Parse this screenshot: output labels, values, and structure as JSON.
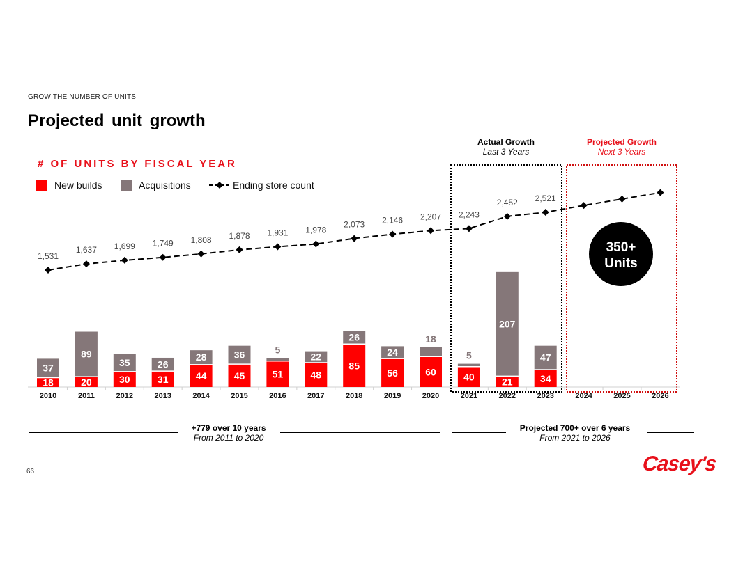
{
  "header": {
    "eyebrow": "GROW THE NUMBER OF UNITS",
    "title": "Projected unit growth",
    "subtitle": "# OF UNITS BY FISCAL YEAR"
  },
  "legend": {
    "new_builds": "New builds",
    "acquisitions": "Acquisitions",
    "ending_store_count": "Ending store count"
  },
  "bands": {
    "actual": {
      "title": "Actual Growth",
      "sub": "Last 3 Years"
    },
    "projected": {
      "title": "Projected Growth",
      "sub": "Next 3 Years"
    },
    "callout_line1": "350+",
    "callout_line2": "Units"
  },
  "footer": {
    "left_title": "+779 over 10 years",
    "left_sub": "From 2011 to 2020",
    "right_title": "Projected 700+ over 6 years",
    "right_sub": "From 2021 to 2026"
  },
  "page_number": "66",
  "logo_text": "Casey's",
  "colors": {
    "new_builds": "#ff0000",
    "acquisitions": "#857779",
    "line": "#000000",
    "accent": "#e8101a"
  },
  "chart_data": {
    "type": "bar",
    "stacked": true,
    "title": "# OF UNITS BY FISCAL YEAR",
    "categories": [
      "2010",
      "2011",
      "2012",
      "2013",
      "2014",
      "2015",
      "2016",
      "2017",
      "2018",
      "2019",
      "2020",
      "2021",
      "2022",
      "2023",
      "2024",
      "2025",
      "2026"
    ],
    "series": [
      {
        "name": "New builds",
        "values": [
          18,
          20,
          30,
          31,
          44,
          45,
          51,
          48,
          85,
          56,
          60,
          40,
          21,
          34,
          null,
          null,
          null
        ]
      },
      {
        "name": "Acquisitions",
        "values": [
          37,
          89,
          35,
          26,
          28,
          36,
          5,
          22,
          26,
          24,
          18,
          5,
          207,
          47,
          null,
          null,
          null
        ]
      }
    ],
    "line_series": {
      "name": "Ending store count",
      "values": [
        1531,
        1637,
        1699,
        1749,
        1808,
        1878,
        1931,
        1978,
        2073,
        2146,
        2207,
        2243,
        2452,
        2521,
        2640,
        2750,
        2860
      ],
      "labels": [
        "1,531",
        "1,637",
        "1,699",
        "1,749",
        "1,808",
        "1,878",
        "1,931",
        "1,978",
        "2,073",
        "2,146",
        "2,207",
        "2,243",
        "2,452",
        "2,521",
        null,
        null,
        null
      ],
      "style": "dashed with diamond markers"
    },
    "grid": false
  }
}
